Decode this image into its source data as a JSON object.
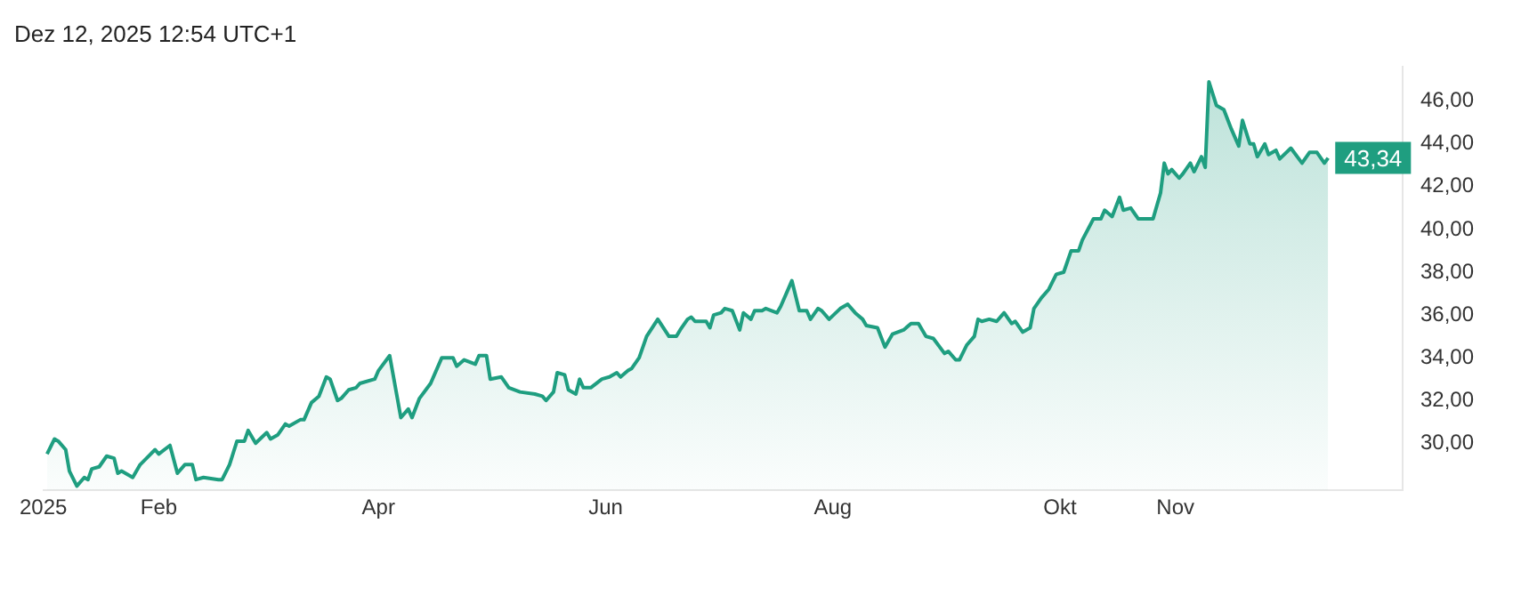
{
  "chart_data": {
    "type": "area",
    "title": "Dez 12, 2025 12:54 UTC+1",
    "x": [
      "2025-01-02",
      "2025-01-04",
      "2025-01-05",
      "2025-01-07",
      "2025-01-08",
      "2025-01-10",
      "2025-01-12",
      "2025-01-13",
      "2025-01-14",
      "2025-01-16",
      "2025-01-18",
      "2025-01-20",
      "2025-01-21",
      "2025-01-22",
      "2025-01-25",
      "2025-01-27",
      "2025-01-31",
      "2025-02-01",
      "2025-02-04",
      "2025-02-06",
      "2025-02-08",
      "2025-02-10",
      "2025-02-11",
      "2025-02-13",
      "2025-02-17",
      "2025-02-18",
      "2025-02-20",
      "2025-02-22",
      "2025-02-24",
      "2025-02-25",
      "2025-02-27",
      "2025-03-02",
      "2025-03-03",
      "2025-03-05",
      "2025-03-07",
      "2025-03-08",
      "2025-03-11",
      "2025-03-12",
      "2025-03-14",
      "2025-03-16",
      "2025-03-18",
      "2025-03-19",
      "2025-03-21",
      "2025-03-22",
      "2025-03-24",
      "2025-03-26",
      "2025-03-27",
      "2025-03-31",
      "2025-04-01",
      "2025-04-04",
      "2025-04-07",
      "2025-04-09",
      "2025-04-10",
      "2025-04-12",
      "2025-04-15",
      "2025-04-18",
      "2025-04-21",
      "2025-04-22",
      "2025-04-24",
      "2025-04-27",
      "2025-04-28",
      "2025-04-30",
      "2025-05-01",
      "2025-05-04",
      "2025-05-06",
      "2025-05-09",
      "2025-05-13",
      "2025-05-15",
      "2025-05-16",
      "2025-05-18",
      "2025-05-19",
      "2025-05-21",
      "2025-05-22",
      "2025-05-24",
      "2025-05-25",
      "2025-05-26",
      "2025-05-28",
      "2025-05-31",
      "2025-06-02",
      "2025-06-04",
      "2025-06-05",
      "2025-06-07",
      "2025-06-08",
      "2025-06-10",
      "2025-06-12",
      "2025-06-15",
      "2025-06-18",
      "2025-06-20",
      "2025-06-21",
      "2025-06-23",
      "2025-06-24",
      "2025-06-25",
      "2025-06-28",
      "2025-06-29",
      "2025-06-30",
      "2025-07-02",
      "2025-07-03",
      "2025-07-05",
      "2025-07-07",
      "2025-07-08",
      "2025-07-10",
      "2025-07-11",
      "2025-07-13",
      "2025-07-14",
      "2025-07-17",
      "2025-07-18",
      "2025-07-21",
      "2025-07-23",
      "2025-07-25",
      "2025-07-26",
      "2025-07-28",
      "2025-07-29",
      "2025-07-31",
      "2025-08-03",
      "2025-08-05",
      "2025-08-07",
      "2025-08-09",
      "2025-08-10",
      "2025-08-13",
      "2025-08-15",
      "2025-08-17",
      "2025-08-20",
      "2025-08-22",
      "2025-08-24",
      "2025-08-26",
      "2025-08-28",
      "2025-08-31",
      "2025-09-01",
      "2025-09-03",
      "2025-09-04",
      "2025-09-06",
      "2025-09-08",
      "2025-09-09",
      "2025-09-10",
      "2025-09-12",
      "2025-09-14",
      "2025-09-16",
      "2025-09-18",
      "2025-09-19",
      "2025-09-21",
      "2025-09-23",
      "2025-09-24",
      "2025-09-26",
      "2025-09-28",
      "2025-09-30",
      "2025-10-02",
      "2025-10-04",
      "2025-10-06",
      "2025-10-07",
      "2025-10-10",
      "2025-10-12",
      "2025-10-13",
      "2025-10-15",
      "2025-10-17",
      "2025-10-18",
      "2025-10-20",
      "2025-10-22",
      "2025-10-24",
      "2025-10-26",
      "2025-10-28",
      "2025-10-29",
      "2025-10-30",
      "2025-10-31",
      "2025-11-02",
      "2025-11-03",
      "2025-11-05",
      "2025-11-06",
      "2025-11-08",
      "2025-11-09",
      "2025-11-10",
      "2025-11-12",
      "2025-11-14",
      "2025-11-16",
      "2025-11-18",
      "2025-11-19",
      "2025-11-21",
      "2025-11-22",
      "2025-11-23",
      "2025-11-25",
      "2025-11-26",
      "2025-11-28",
      "2025-11-29",
      "2025-12-02",
      "2025-12-05",
      "2025-12-07",
      "2025-12-09",
      "2025-12-11",
      "2025-12-12"
    ],
    "series": [
      {
        "color": "#1f9e80",
        "values": [
          29.5,
          30.2,
          30.1,
          29.7,
          28.7,
          28.0,
          28.4,
          28.3,
          28.8,
          28.9,
          29.4,
          29.3,
          28.6,
          28.7,
          28.4,
          29.0,
          29.7,
          29.5,
          29.9,
          28.6,
          29.0,
          29.0,
          28.3,
          28.4,
          28.3,
          28.3,
          29.0,
          30.1,
          30.1,
          30.6,
          30.0,
          30.5,
          30.2,
          30.4,
          30.9,
          30.8,
          31.1,
          31.1,
          31.9,
          32.2,
          33.1,
          33.0,
          32.0,
          32.1,
          32.5,
          32.6,
          32.8,
          33.0,
          33.4,
          34.1,
          31.2,
          31.6,
          31.2,
          32.1,
          32.8,
          34.0,
          34.0,
          33.6,
          33.9,
          33.7,
          34.1,
          34.1,
          33.0,
          33.1,
          32.6,
          32.4,
          32.3,
          32.2,
          32.0,
          32.4,
          33.3,
          33.2,
          32.5,
          32.3,
          33.0,
          32.6,
          32.6,
          33.0,
          33.1,
          33.3,
          33.1,
          33.4,
          33.5,
          34.0,
          35.0,
          35.8,
          35.0,
          35.0,
          35.3,
          35.8,
          35.9,
          35.7,
          35.7,
          35.4,
          36.0,
          36.1,
          36.3,
          36.2,
          35.3,
          36.1,
          35.8,
          36.2,
          36.2,
          36.3,
          36.1,
          36.4,
          37.6,
          36.2,
          36.2,
          35.8,
          36.3,
          36.2,
          35.8,
          36.3,
          36.5,
          36.1,
          35.8,
          35.5,
          35.4,
          34.5,
          35.1,
          35.3,
          35.6,
          35.6,
          35.0,
          34.9,
          34.2,
          34.3,
          33.9,
          33.9,
          34.6,
          35.0,
          35.8,
          35.7,
          35.8,
          35.7,
          36.1,
          35.6,
          35.7,
          35.2,
          35.4,
          36.3,
          36.8,
          37.2,
          37.9,
          38.0,
          39.0,
          39.0,
          39.5,
          40.5,
          40.5,
          40.9,
          40.6,
          41.5,
          40.9,
          41.0,
          40.5,
          40.5,
          40.5,
          41.7,
          43.1,
          42.6,
          42.8,
          42.4,
          42.6,
          43.1,
          42.7,
          43.4,
          42.9,
          46.9,
          45.8,
          45.6,
          44.7,
          43.9,
          45.1,
          44.0,
          44.0,
          43.4,
          44.0,
          43.5,
          43.7,
          43.3,
          43.8,
          43.1,
          43.6,
          43.6,
          43.1,
          43.34
        ]
      }
    ],
    "xlim": [
      "2025-01-01",
      "2026-01-01"
    ],
    "xticks": [
      {
        "value": "2025-01-01",
        "label": "2025"
      },
      {
        "value": "2025-02-01",
        "label": "Feb"
      },
      {
        "value": "2025-04-01",
        "label": "Apr"
      },
      {
        "value": "2025-06-01",
        "label": "Jun"
      },
      {
        "value": "2025-08-01",
        "label": "Aug"
      },
      {
        "value": "2025-10-01",
        "label": "Okt"
      },
      {
        "value": "2025-11-01",
        "label": "Nov"
      }
    ],
    "ylim": [
      27.8,
      47.6
    ],
    "yticks": [
      {
        "value": 30,
        "label": "30,00"
      },
      {
        "value": 32,
        "label": "32,00"
      },
      {
        "value": 34,
        "label": "34,00"
      },
      {
        "value": 36,
        "label": "36,00"
      },
      {
        "value": 38,
        "label": "38,00"
      },
      {
        "value": 40,
        "label": "40,00"
      },
      {
        "value": 42,
        "label": "42,00"
      },
      {
        "value": 44,
        "label": "44,00"
      },
      {
        "value": 46,
        "label": "46,00"
      }
    ],
    "annotations": [
      {
        "text": "43,34",
        "x": "2025-12-12",
        "y": 43.34
      }
    ]
  }
}
